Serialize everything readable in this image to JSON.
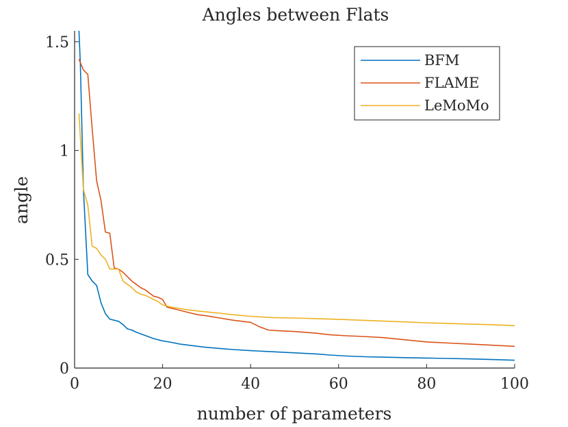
{
  "chart_data": {
    "type": "line",
    "title": "Angles between Flats",
    "xlabel": "number of parameters",
    "ylabel": "angle",
    "xlim": [
      0,
      100
    ],
    "ylim": [
      0,
      1.55
    ],
    "xticks": [
      0,
      20,
      40,
      60,
      80,
      100
    ],
    "xtick_labels": [
      "0",
      "20",
      "40",
      "60",
      "80",
      "100"
    ],
    "yticks": [
      0,
      0.5,
      1,
      1.5
    ],
    "ytick_labels": [
      "0",
      "0.5",
      "1",
      "1.5"
    ],
    "legend_position": "top-right",
    "series": [
      {
        "name": "BFM",
        "color": "#0072BD",
        "x": [
          1,
          1.3,
          2,
          3,
          4,
          5,
          6,
          7,
          8,
          10,
          11,
          12,
          13,
          14,
          16,
          18,
          20,
          22,
          24,
          26,
          28,
          30,
          33,
          36,
          40,
          45,
          50,
          55,
          58,
          62,
          66,
          70,
          75,
          80,
          85,
          90,
          95,
          100
        ],
        "y": [
          1.55,
          1.4,
          0.82,
          0.43,
          0.4,
          0.38,
          0.3,
          0.25,
          0.225,
          0.215,
          0.2,
          0.18,
          0.175,
          0.165,
          0.15,
          0.135,
          0.125,
          0.118,
          0.11,
          0.105,
          0.1,
          0.095,
          0.09,
          0.085,
          0.08,
          0.075,
          0.07,
          0.065,
          0.06,
          0.055,
          0.052,
          0.05,
          0.048,
          0.046,
          0.044,
          0.042,
          0.039,
          0.036
        ]
      },
      {
        "name": "FLAME",
        "color": "#D95319",
        "x": [
          1,
          2,
          3,
          4,
          5,
          6,
          7,
          8,
          9,
          10,
          11,
          12,
          13,
          14,
          15,
          16,
          17,
          18,
          19,
          20,
          21,
          22,
          24,
          26,
          28,
          30,
          33,
          36,
          40,
          42,
          44,
          46,
          50,
          55,
          58,
          62,
          66,
          70,
          75,
          80,
          85,
          90,
          95,
          100
        ],
        "y": [
          1.42,
          1.37,
          1.35,
          1.1,
          0.86,
          0.77,
          0.625,
          0.62,
          0.46,
          0.455,
          0.44,
          0.42,
          0.4,
          0.385,
          0.37,
          0.36,
          0.345,
          0.33,
          0.325,
          0.315,
          0.28,
          0.275,
          0.265,
          0.255,
          0.245,
          0.24,
          0.23,
          0.22,
          0.21,
          0.19,
          0.175,
          0.172,
          0.168,
          0.16,
          0.153,
          0.148,
          0.145,
          0.14,
          0.13,
          0.12,
          0.115,
          0.11,
          0.105,
          0.1
        ]
      },
      {
        "name": "LeMoMo",
        "color": "#EDB120",
        "x": [
          1,
          2,
          3,
          4,
          5,
          6,
          7,
          8,
          9,
          10,
          11,
          12,
          13,
          14,
          15,
          16,
          17,
          18,
          19,
          20,
          22,
          25,
          28,
          30,
          33,
          36,
          40,
          45,
          50,
          55,
          60,
          65,
          70,
          75,
          80,
          85,
          90,
          95,
          100
        ],
        "y": [
          1.17,
          0.82,
          0.75,
          0.56,
          0.55,
          0.52,
          0.5,
          0.455,
          0.455,
          0.455,
          0.4,
          0.385,
          0.37,
          0.35,
          0.34,
          0.335,
          0.325,
          0.315,
          0.305,
          0.29,
          0.28,
          0.27,
          0.262,
          0.258,
          0.252,
          0.245,
          0.238,
          0.232,
          0.23,
          0.227,
          0.224,
          0.22,
          0.216,
          0.212,
          0.208,
          0.205,
          0.202,
          0.199,
          0.195
        ]
      }
    ]
  }
}
